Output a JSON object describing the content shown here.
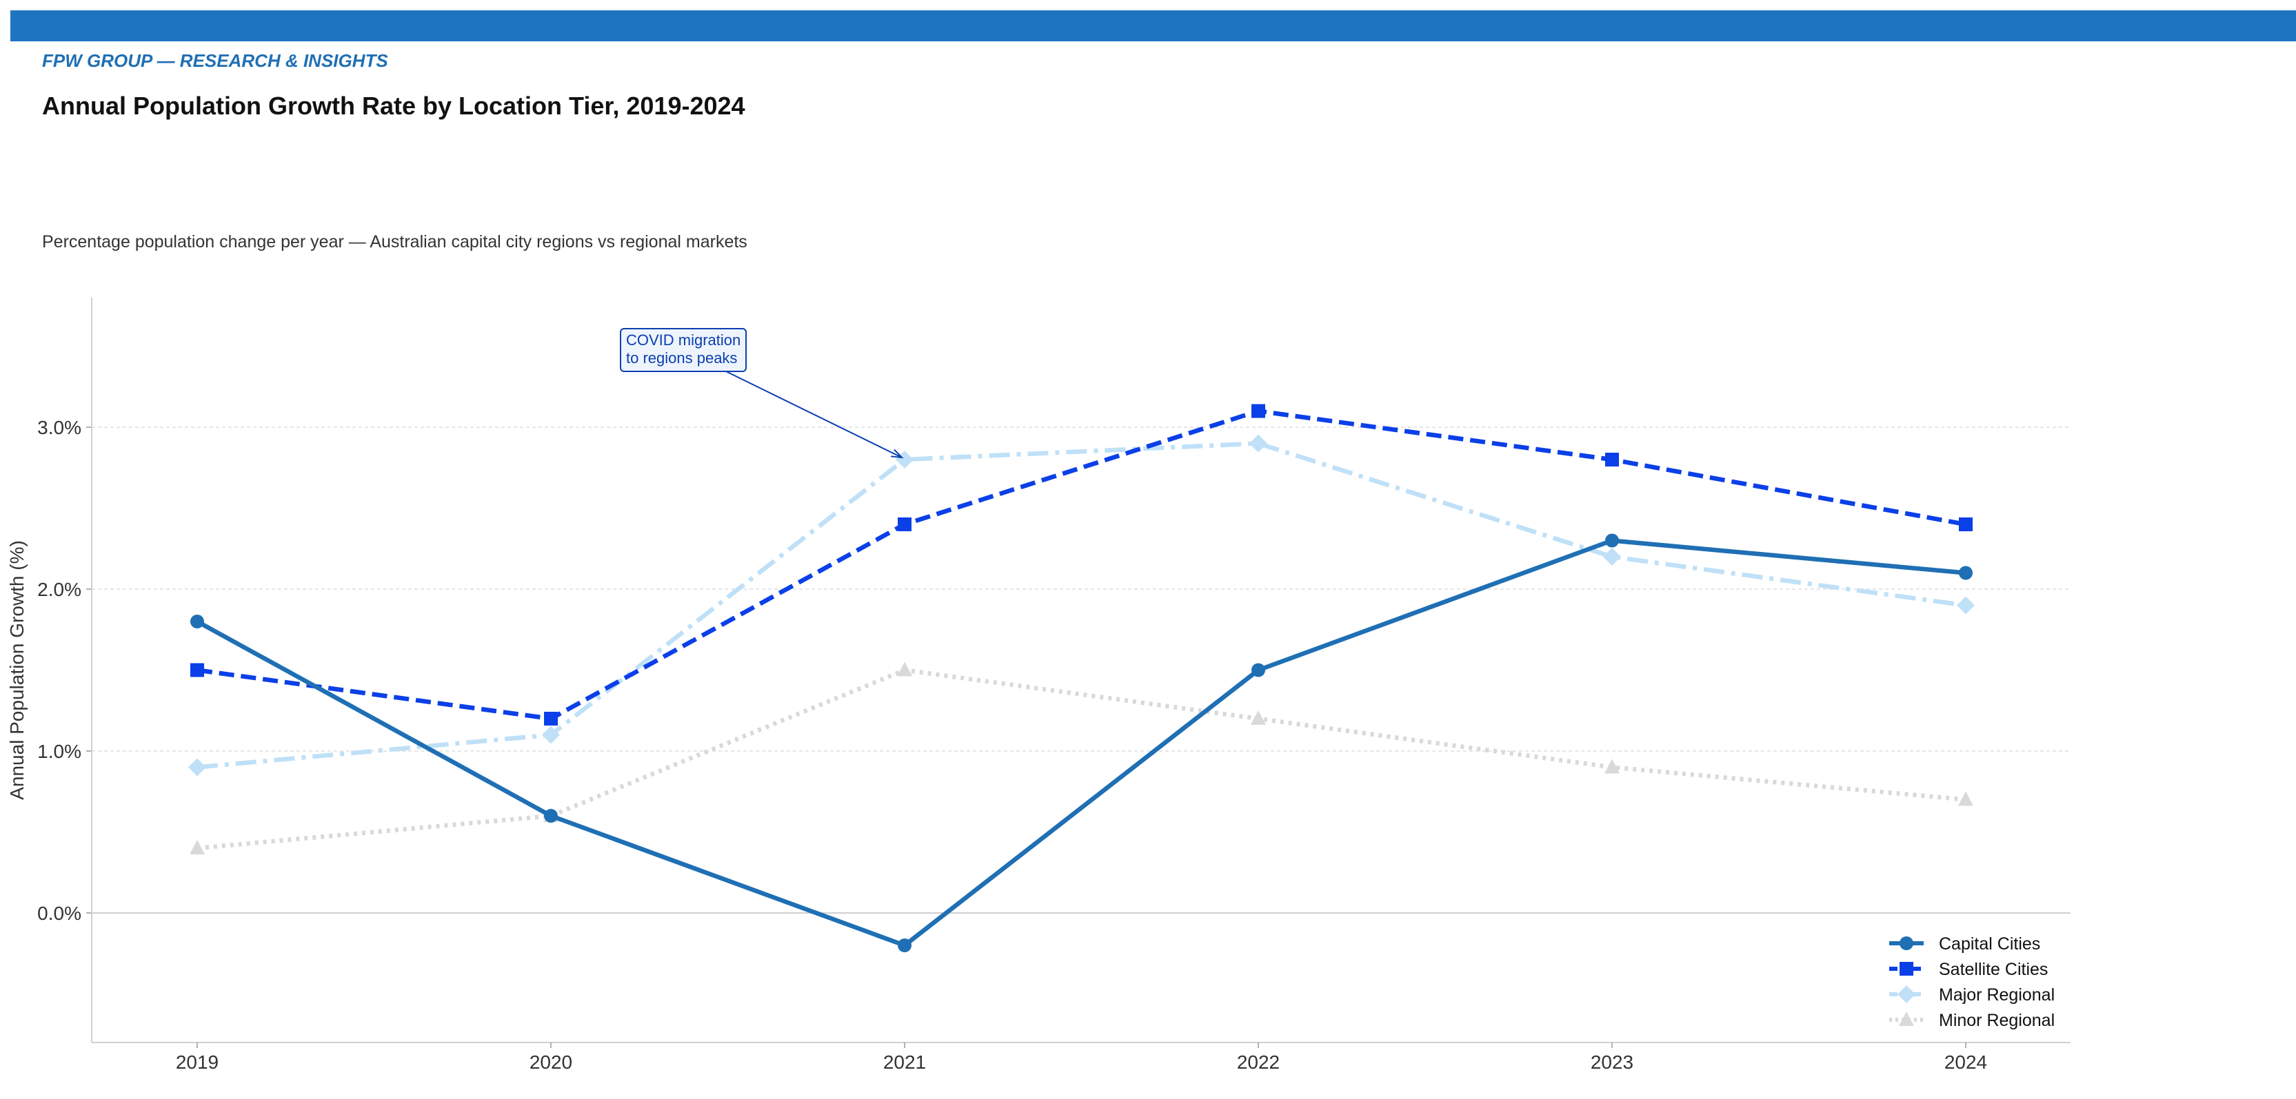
{
  "header": {
    "brand": "FPW GROUP — RESEARCH & INSIGHTS",
    "title": "Annual Population Growth Rate by Location Tier, 2019-2024",
    "subtitle": "Percentage population change per year — Australian capital city regions vs regional markets"
  },
  "colors": {
    "bar": "#1f74c1",
    "brand": "#1f6fb4"
  },
  "chart_data": {
    "type": "line",
    "categories": [
      "2019",
      "2020",
      "2021",
      "2022",
      "2023",
      "2024"
    ],
    "ylabel": "Annual Population Growth (%)",
    "ylim": [
      -0.8,
      3.8
    ],
    "yticks": [
      0,
      1,
      2,
      3
    ],
    "ytick_labels": [
      "0.0%",
      "1.0%",
      "2.0%",
      "3.0%"
    ],
    "grid": true,
    "legend_position": "bottom-right",
    "series": [
      {
        "name": "Capital Cities",
        "values": [
          1.8,
          0.6,
          -0.2,
          1.5,
          2.3,
          2.1
        ],
        "color": "#1f6fb4",
        "dash": "solid",
        "marker": "circle"
      },
      {
        "name": "Satellite Cities",
        "values": [
          1.5,
          1.2,
          2.4,
          3.1,
          2.8,
          2.4
        ],
        "color": "#0b3fe8",
        "dash": "dashed",
        "marker": "square"
      },
      {
        "name": "Major Regional",
        "values": [
          0.9,
          1.1,
          2.8,
          2.9,
          2.2,
          1.9
        ],
        "color": "#bfe0f7",
        "dash": "dashdot",
        "marker": "diamond"
      },
      {
        "name": "Minor Regional",
        "values": [
          0.4,
          0.6,
          1.5,
          1.2,
          0.9,
          0.7
        ],
        "color": "#d9d9d9",
        "dash": "dotted",
        "marker": "triangle"
      }
    ],
    "annotation": {
      "lines": [
        "COVID migration",
        "to regions peaks"
      ],
      "target_category": "2021",
      "target_value": 2.8,
      "color": "#0b3fb0"
    }
  }
}
